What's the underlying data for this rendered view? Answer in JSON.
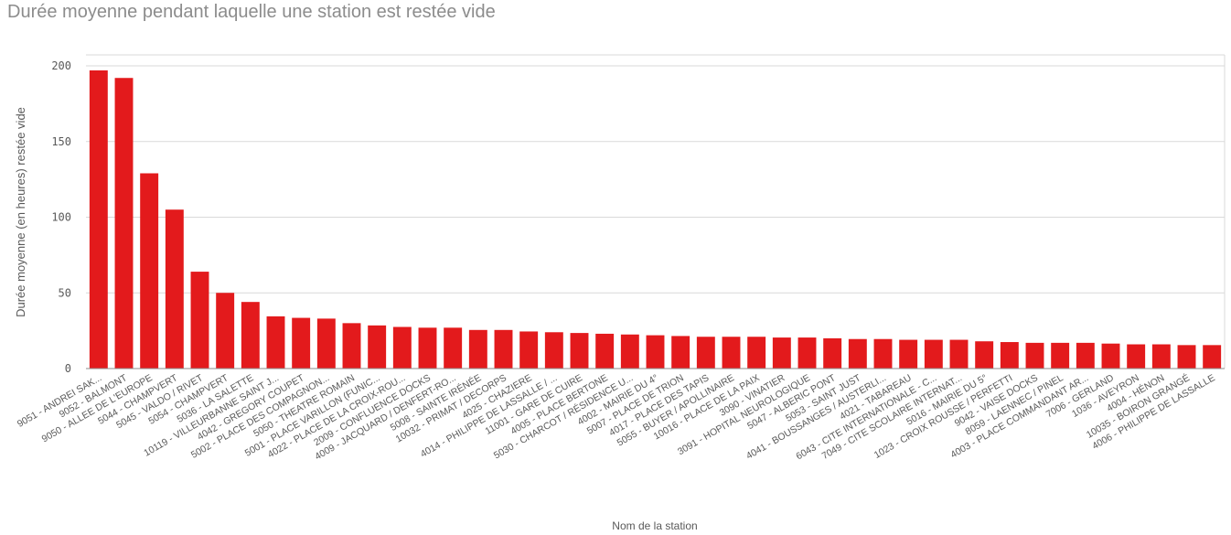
{
  "chart_data": {
    "type": "bar",
    "title": "Durée moyenne pendant laquelle une station est restée vide",
    "xlabel": "Nom de la station",
    "ylabel": "Durée moyenne (en heures) restée vide",
    "ylim": [
      0,
      200
    ],
    "yticks": [
      0,
      50,
      100,
      150,
      200
    ],
    "grid": true,
    "bar_color": "#e31a1c",
    "categories": [
      "9051 - ANDREI SAK...",
      "9052 - BALMONT",
      "9050 - ALLEE DE L'EUROPE",
      "5044 - CHAMPVERT",
      "5045 - VALDO / RIVET",
      "5054 - CHAMPVERT",
      "5036 - LA SALETTE",
      "10119 - VILLEURBANNE SAINT J...",
      "4042 - GREGORY COUPET",
      "5002 - PLACE DES COMPAGNON...",
      "5050 - THEATRE ROMAIN",
      "5001 - PLACE VARILLON (FUNIC...",
      "4022 - PLACE DE LA CROIX-ROU...",
      "2009 - CONFLUENCE DOCKS",
      "4009 - JACQUARD / DENFERT-RO...",
      "5008 - SAINTE IRÉNÉE",
      "10032 - PRIMAT / DECORPS",
      "4025 - CHAZIERE",
      "4014 - PHILIPPE DE LASSALLE / ...",
      "11001 - GARE DE CUIRE",
      "4005 - PLACE BERTONE",
      "5030 - CHARCOT / RÉSIDENCE U...",
      "4002 - MAIRIE DU 4°",
      "5007 - PLACE DE TRION",
      "4017 - PLACE DES TAPIS",
      "5055 - BUYER / APOLLINAIRE",
      "10016 - PLACE DE LA PAIX",
      "3090 - VINATIER",
      "3091 - HOPITAL NEUROLOGIQUE",
      "5047 - ALBERIC PONT",
      "5053 - SAINT JUST",
      "4041 - BOUSSANGES / AUSTERLI...",
      "4021 - TABAREAU",
      "6043 - CITE INTERNATIONALE - C...",
      "7049 - CITE SCOLAIRE INTERNAT...",
      "5016 - MAIRIE DU 5°",
      "1023 - CROIX ROUSSE / PERFETTI",
      "9042 - VAISE DOCKS",
      "8059 - LAENNEC / PINEL",
      "4003 - PLACE COMMANDANT AR...",
      "7006 - GERLAND",
      "1036 - AVEYRON",
      "4004 - HÉNON",
      "10035 - BOIRON GRANGÉ",
      "4006 - PHILIPPE DE LASSALLE"
    ],
    "values": [
      197,
      192,
      129,
      105,
      64,
      50,
      44,
      34.5,
      33.5,
      33,
      30,
      28.5,
      27.5,
      27,
      27,
      25.5,
      25.5,
      24.5,
      24,
      23.5,
      23,
      22.5,
      22,
      21.5,
      21,
      21,
      21,
      20.5,
      20.5,
      20,
      19.5,
      19.5,
      19,
      19,
      19,
      18,
      17.5,
      17,
      17,
      17,
      16.5,
      16,
      16,
      15.5,
      15.5
    ]
  }
}
